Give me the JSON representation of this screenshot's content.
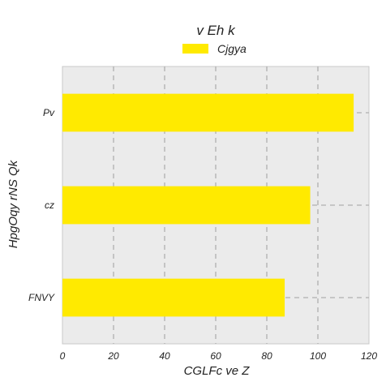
{
  "chart_data": {
    "type": "bar",
    "orientation": "horizontal",
    "title": "v Eh k",
    "xlabel": "CGLFc ve Z",
    "ylabel": "HpgOqy rNS Qk",
    "categories": [
      "Pv",
      "cz",
      "FNVY"
    ],
    "series": [
      {
        "name": "Cjgya",
        "values": [
          114,
          97,
          87
        ]
      }
    ],
    "xlim": [
      0,
      120
    ],
    "xticks": [
      "0",
      "20",
      "40",
      "60",
      "80",
      "100",
      "120"
    ],
    "grid": true,
    "legend_position": "top-center",
    "colors": {
      "bar": "#ffea00",
      "plot_background": "#ebebeb",
      "grid": "#b0b0b0"
    }
  }
}
